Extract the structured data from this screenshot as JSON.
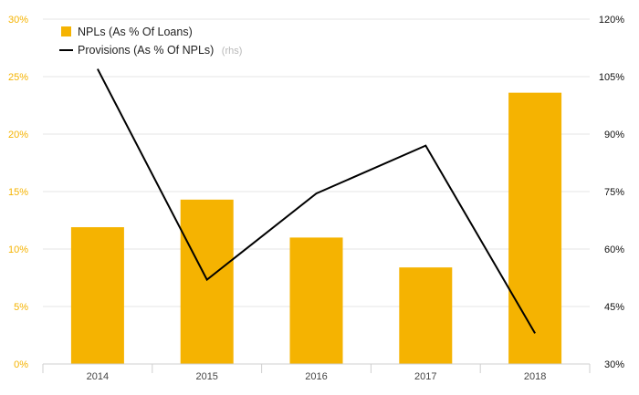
{
  "chart_data": {
    "type": "bar",
    "categories": [
      "2014",
      "2015",
      "2016",
      "2017",
      "2018"
    ],
    "series": [
      {
        "name": "NPLs (As % Of Loans)",
        "type": "bar",
        "axis": "left",
        "color": "#f5b301",
        "values": [
          11.9,
          14.3,
          11.0,
          8.4,
          23.6
        ]
      },
      {
        "name": "Provisions (As % Of NPLs)",
        "name_note": "(rhs)",
        "type": "line",
        "axis": "right",
        "color": "#000000",
        "values": [
          107,
          52,
          74.5,
          87,
          38
        ]
      }
    ],
    "y_left": {
      "min": 0,
      "max": 30,
      "ticks": [
        "0%",
        "5%",
        "10%",
        "15%",
        "20%",
        "25%",
        "30%"
      ]
    },
    "y_right": {
      "min": 30,
      "max": 120,
      "ticks": [
        "30%",
        "45%",
        "60%",
        "75%",
        "90%",
        "105%",
        "120%"
      ]
    },
    "grid": true,
    "legend_position": "top-left"
  }
}
